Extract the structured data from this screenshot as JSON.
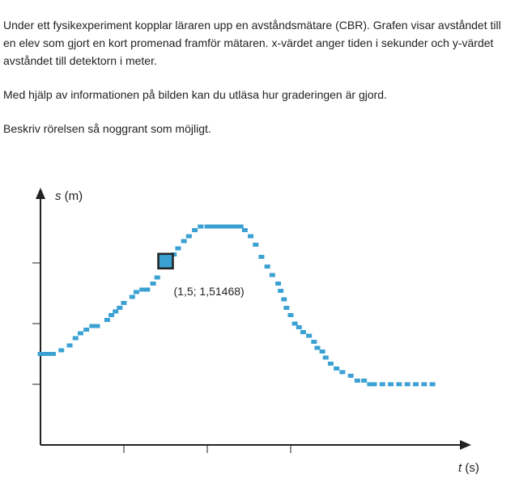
{
  "text": {
    "paragraph1": "Under ett fysikexperiment kopplar läraren upp en avståndsmätare (CBR). Grafen visar avståndet till en elev som gjort en kort promenad framför mätaren. x-värdet anger tiden i sekunder och y-värdet avståndet till detektorn i meter.",
    "paragraph2": "Med hjälp av informationen på bilden kan du utläsa hur graderingen är gjord.",
    "paragraph3": "Beskriv rörelsen så noggrant som möjligt."
  },
  "chart_data": {
    "type": "scatter",
    "ylabel_var": "s",
    "ylabel_unit": " (m)",
    "xlabel_var": "t",
    "xlabel_unit": " (s)",
    "ticks_labeled": false,
    "xlim": [
      0,
      5.0
    ],
    "ylim": [
      0,
      2.0
    ],
    "x_tick_values": [
      1,
      2,
      3
    ],
    "y_tick_values": [
      0.5,
      1.0,
      1.5
    ],
    "highlight": {
      "x": 1.5,
      "y": 1.51468,
      "label": "(1,5; 1,51468)"
    },
    "series": [
      {
        "color": "#3ba1d3",
        "points": [
          [
            0.0,
            0.75
          ],
          [
            0.05,
            0.75
          ],
          [
            0.1,
            0.75
          ],
          [
            0.15,
            0.75
          ],
          [
            0.25,
            0.78
          ],
          [
            0.35,
            0.82
          ],
          [
            0.42,
            0.88
          ],
          [
            0.48,
            0.92
          ],
          [
            0.55,
            0.95
          ],
          [
            0.62,
            0.98
          ],
          [
            0.68,
            0.98
          ],
          [
            0.8,
            1.03
          ],
          [
            0.85,
            1.07
          ],
          [
            0.9,
            1.1
          ],
          [
            0.95,
            1.13
          ],
          [
            1.0,
            1.17
          ],
          [
            1.1,
            1.22
          ],
          [
            1.15,
            1.26
          ],
          [
            1.22,
            1.28
          ],
          [
            1.28,
            1.28
          ],
          [
            1.35,
            1.33
          ],
          [
            1.4,
            1.38
          ],
          [
            1.6,
            1.57
          ],
          [
            1.65,
            1.62
          ],
          [
            1.72,
            1.68
          ],
          [
            1.78,
            1.72
          ],
          [
            1.85,
            1.77
          ],
          [
            1.92,
            1.8
          ],
          [
            2.0,
            1.8
          ],
          [
            2.05,
            1.8
          ],
          [
            2.1,
            1.8
          ],
          [
            2.15,
            1.8
          ],
          [
            2.2,
            1.8
          ],
          [
            2.25,
            1.8
          ],
          [
            2.3,
            1.8
          ],
          [
            2.35,
            1.8
          ],
          [
            2.4,
            1.8
          ],
          [
            2.45,
            1.77
          ],
          [
            2.52,
            1.72
          ],
          [
            2.58,
            1.65
          ],
          [
            2.65,
            1.55
          ],
          [
            2.72,
            1.47
          ],
          [
            2.78,
            1.4
          ],
          [
            2.85,
            1.33
          ],
          [
            2.88,
            1.27
          ],
          [
            2.92,
            1.2
          ],
          [
            2.95,
            1.13
          ],
          [
            3.0,
            1.07
          ],
          [
            3.05,
            1.0
          ],
          [
            3.1,
            0.97
          ],
          [
            3.15,
            0.93
          ],
          [
            3.22,
            0.9
          ],
          [
            3.28,
            0.85
          ],
          [
            3.32,
            0.8
          ],
          [
            3.38,
            0.77
          ],
          [
            3.42,
            0.72
          ],
          [
            3.48,
            0.67
          ],
          [
            3.55,
            0.63
          ],
          [
            3.62,
            0.6
          ],
          [
            3.72,
            0.57
          ],
          [
            3.8,
            0.53
          ],
          [
            3.88,
            0.53
          ],
          [
            3.95,
            0.5
          ],
          [
            4.0,
            0.5
          ],
          [
            4.1,
            0.5
          ],
          [
            4.2,
            0.5
          ],
          [
            4.3,
            0.5
          ],
          [
            4.4,
            0.5
          ],
          [
            4.5,
            0.5
          ],
          [
            4.6,
            0.5
          ],
          [
            4.7,
            0.5
          ]
        ]
      }
    ]
  }
}
